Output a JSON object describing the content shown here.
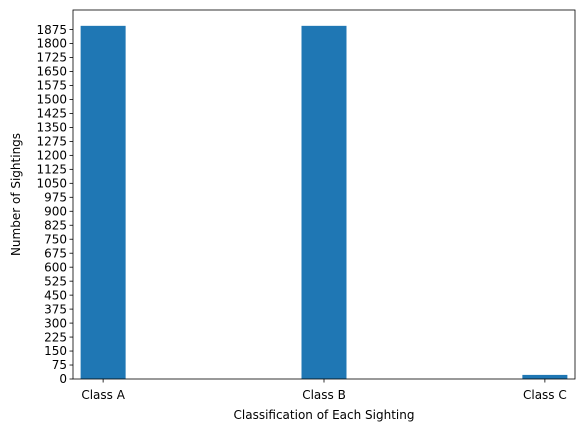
{
  "chart_data": {
    "type": "bar",
    "categories": [
      "Class A",
      "Class B",
      "Class C"
    ],
    "values": [
      1895,
      1895,
      22
    ],
    "title": "",
    "xlabel": "Classification of Each Sighting",
    "ylabel": "Number of Sightings",
    "ylim": [
      0,
      1980
    ],
    "yticks": [
      0,
      75,
      150,
      225,
      300,
      375,
      450,
      525,
      600,
      675,
      750,
      825,
      900,
      975,
      1050,
      1125,
      1200,
      1275,
      1350,
      1425,
      1500,
      1575,
      1650,
      1725,
      1800,
      1875
    ],
    "grid": false,
    "bar_color": "#1f77b4"
  }
}
